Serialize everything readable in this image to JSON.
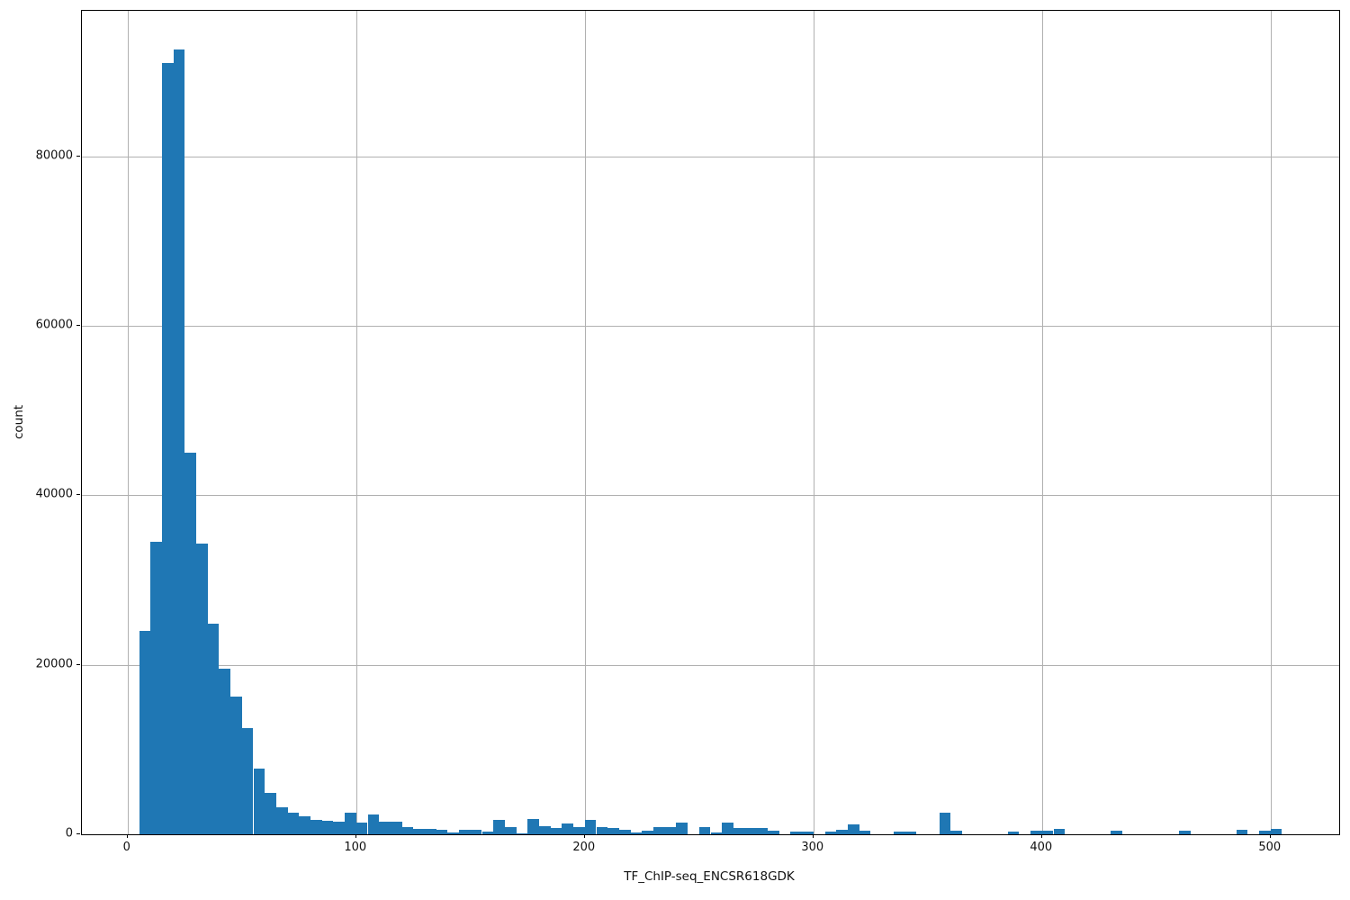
{
  "figure": {
    "kind": "matplotlib-histogram"
  },
  "chart_data": {
    "type": "bar",
    "chart_kind": "histogram",
    "title": "",
    "xlabel": "TF_ChIP-seq_ENCSR618GDK",
    "ylabel": "count",
    "grid": true,
    "legend": false,
    "bar_color": "#1f77b4",
    "grid_color": "#b0b0b0",
    "spine_color": "#000000",
    "xlim": [
      -20,
      530
    ],
    "ylim": [
      0,
      97200
    ],
    "x_ticks": [
      0,
      100,
      200,
      300,
      400,
      500
    ],
    "y_ticks": [
      0,
      20000,
      40000,
      60000,
      80000
    ],
    "bin_width": 5,
    "bin_starts": [
      5,
      10,
      15,
      20,
      25,
      30,
      35,
      40,
      45,
      50,
      55,
      60,
      65,
      70,
      75,
      80,
      85,
      90,
      95,
      100,
      105,
      110,
      115,
      120,
      125,
      130,
      135,
      140,
      145,
      150,
      155,
      160,
      165,
      170,
      175,
      180,
      185,
      190,
      195,
      200,
      205,
      210,
      215,
      220,
      225,
      230,
      235,
      240,
      245,
      250,
      255,
      260,
      265,
      270,
      275,
      280,
      285,
      290,
      295,
      300,
      305,
      310,
      315,
      320,
      325,
      330,
      335,
      340,
      345,
      350,
      355,
      360,
      365,
      370,
      375,
      380,
      385,
      390,
      395,
      400,
      405,
      410,
      415,
      420,
      425,
      430,
      435,
      440,
      445,
      450,
      455,
      460,
      465,
      470,
      475,
      480,
      485,
      490,
      495,
      500
    ],
    "values": [
      24000,
      34500,
      91000,
      92600,
      45000,
      34300,
      24900,
      19500,
      16300,
      12500,
      7800,
      4900,
      3200,
      2500,
      2100,
      1700,
      1550,
      1500,
      2550,
      1400,
      2300,
      1500,
      1500,
      900,
      600,
      600,
      500,
      200,
      500,
      500,
      300,
      1650,
      900,
      150,
      1800,
      950,
      700,
      1250,
      800,
      1650,
      900,
      700,
      550,
      200,
      400,
      900,
      800,
      1400,
      0,
      800,
      250,
      1350,
      700,
      700,
      700,
      400,
      0,
      350,
      350,
      0,
      300,
      550,
      1150,
      450,
      0,
      0,
      350,
      350,
      0,
      0,
      2600,
      450,
      0,
      0,
      0,
      0,
      350,
      0,
      400,
      450,
      600,
      0,
      0,
      0,
      0,
      400,
      0,
      0,
      0,
      0,
      0,
      400,
      0,
      0,
      0,
      0,
      550,
      0,
      400,
      600
    ]
  }
}
